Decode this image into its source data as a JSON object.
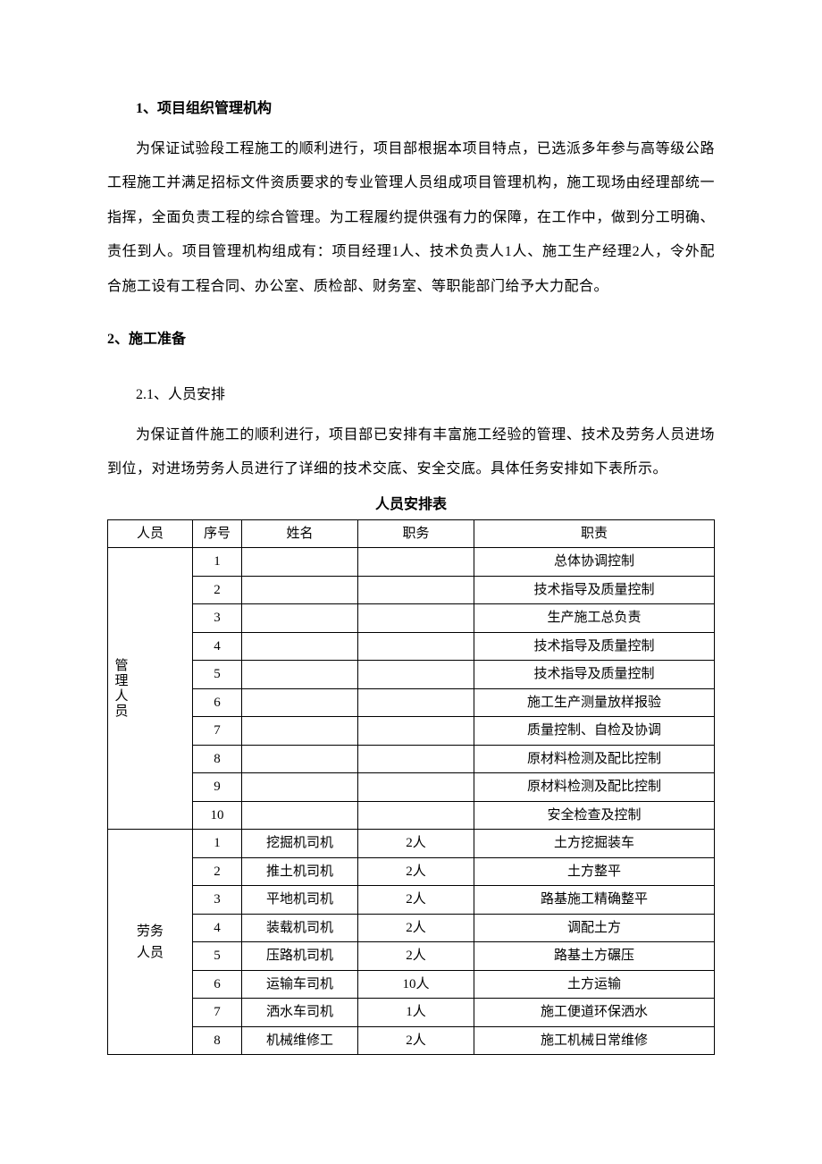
{
  "section1": {
    "title": "1、项目组织管理机构",
    "paragraph": "为保证试验段工程施工的顺利进行，项目部根据本项目特点，已选派多年参与高等级公路工程施工并满足招标文件资质要求的专业管理人员组成项目管理机构，施工现场由经理部统一指挥，全面负责工程的综合管理。为工程履约提供强有力的保障，在工作中，做到分工明确、责任到人。项目管理机构组成有：项目经理1人、技术负责人1人、施工生产经理2人，令外配合施工设有工程合同、办公室、质检部、财务室、等职能部门给予大力配合。"
  },
  "section2": {
    "title": "2、施工准备",
    "sub1_title": "2.1、人员安排",
    "sub1_paragraph": "为保证首件施工的顺利进行，项目部已安排有丰富施工经验的管理、技术及劳务人员进场到位，对进场劳务人员进行了详细的技术交底、安全交底。具体任务安排如下表所示。"
  },
  "personnel_table": {
    "caption": "人员安排表",
    "columns": [
      "人员",
      "序号",
      "姓名",
      "职务",
      "职责"
    ],
    "group1": {
      "label": "管理人员",
      "rows": [
        {
          "num": "1",
          "name": "",
          "pos": "",
          "duty": "总体协调控制"
        },
        {
          "num": "2",
          "name": "",
          "pos": "",
          "duty": "技术指导及质量控制"
        },
        {
          "num": "3",
          "name": "",
          "pos": "",
          "duty": "生产施工总负责"
        },
        {
          "num": "4",
          "name": "",
          "pos": "",
          "duty": "技术指导及质量控制"
        },
        {
          "num": "5",
          "name": "",
          "pos": "",
          "duty": "技术指导及质量控制"
        },
        {
          "num": "6",
          "name": "",
          "pos": "",
          "duty": "施工生产测量放样报验"
        },
        {
          "num": "7",
          "name": "",
          "pos": "",
          "duty": "质量控制、自检及协调"
        },
        {
          "num": "8",
          "name": "",
          "pos": "",
          "duty": "原材料检测及配比控制"
        },
        {
          "num": "9",
          "name": "",
          "pos": "",
          "duty": "原材料检测及配比控制"
        },
        {
          "num": "10",
          "name": "",
          "pos": "",
          "duty": "安全检查及控制"
        }
      ]
    },
    "group2": {
      "label": "劳务人员",
      "rows": [
        {
          "num": "1",
          "name": "挖掘机司机",
          "pos": "2人",
          "duty": "土方挖掘装车"
        },
        {
          "num": "2",
          "name": "推土机司机",
          "pos": "2人",
          "duty": "土方整平"
        },
        {
          "num": "3",
          "name": "平地机司机",
          "pos": "2人",
          "duty": "路基施工精确整平"
        },
        {
          "num": "4",
          "name": "装载机司机",
          "pos": "2人",
          "duty": "调配土方"
        },
        {
          "num": "5",
          "name": "压路机司机",
          "pos": "2人",
          "duty": "路基土方碾压"
        },
        {
          "num": "6",
          "name": "运输车司机",
          "pos": "10人",
          "duty": "土方运输"
        },
        {
          "num": "7",
          "name": "洒水车司机",
          "pos": "1人",
          "duty": "施工便道环保洒水"
        },
        {
          "num": "8",
          "name": "机械维修工",
          "pos": "2人",
          "duty": "施工机械日常维修"
        }
      ]
    }
  }
}
